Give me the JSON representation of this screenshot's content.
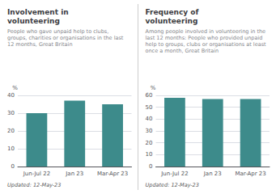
{
  "chart_data": [
    {
      "type": "bar",
      "title": "Involvement in\nvolunteering",
      "subtitle": "People who gave unpaid help to clubs,\ngroups, charities or organisations in the last\n12 months, Great Britain",
      "categories": [
        "Jun-Jul 22",
        "Jan 23",
        "Mar-Apr 23"
      ],
      "values": [
        30,
        37,
        35
      ],
      "color": "#3d8b8b",
      "ylim": [
        0,
        40
      ],
      "yticks": [
        0,
        10,
        20,
        30,
        40
      ],
      "ylabel": "%",
      "annotation": "Updated: 12-May-23",
      "grid": true
    },
    {
      "type": "bar",
      "title": "Frequency of\nvolunteering",
      "subtitle": "Among people involved in volunteering in the\nlast 12 months: People who provided unpaid\nhelp to groups, clubs or organisations at least\nonce a month, Great Britain",
      "categories": [
        "Jun-Jul 22",
        "Jan 23",
        "Mar-Apr 23"
      ],
      "values": [
        58,
        57,
        57
      ],
      "color": "#3d8b8b",
      "ylim": [
        0,
        60
      ],
      "yticks": [
        0,
        10,
        20,
        30,
        40,
        50,
        60
      ],
      "ylabel": "%",
      "annotation": "Updated: 12-May-23",
      "grid": true
    }
  ]
}
